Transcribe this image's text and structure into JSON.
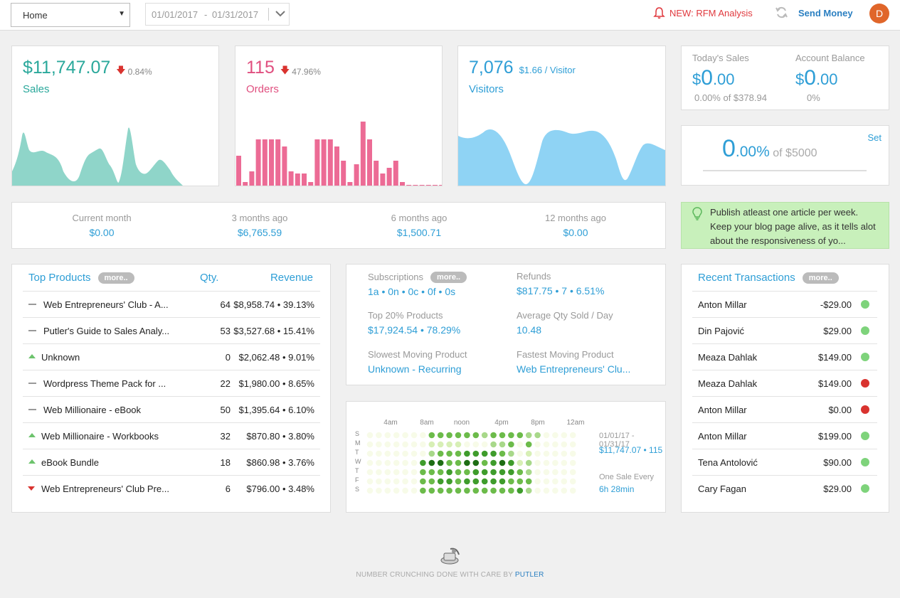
{
  "topbar": {
    "view_select": "Home",
    "date_from": "01/01/2017",
    "date_sep": "-",
    "date_to": "01/31/2017",
    "rfm_link": "NEW: RFM Analysis",
    "send_money": "Send Money",
    "avatar_initial": "D"
  },
  "kpis": {
    "sales": {
      "value": "$11,747.07",
      "delta": "0.84%",
      "label": "Sales",
      "color": "#2aa89b"
    },
    "orders": {
      "value": "115",
      "delta": "47.96%",
      "label": "Orders",
      "color": "#e04f7f"
    },
    "visitors": {
      "value": "7,076",
      "per_visitor": "$1.66 / Visitor",
      "label": "Visitors",
      "color": "#2e9ed6"
    }
  },
  "today": {
    "sales_label": "Today's Sales",
    "sales_dollar": "$",
    "sales_int": "0",
    "sales_dec": ".00",
    "sales_sub": "0.00% of $378.94",
    "balance_label": "Account Balance",
    "balance_dollar": "$",
    "balance_int": "0",
    "balance_dec": ".00",
    "balance_sub": "0%"
  },
  "goal": {
    "set": "Set",
    "int": "0",
    "dec": ".00%",
    "of": "of $5000"
  },
  "history": [
    {
      "label": "Current month",
      "value": "$0.00"
    },
    {
      "label": "3 months ago",
      "value": "$6,765.59"
    },
    {
      "label": "6 months ago",
      "value": "$1,500.71"
    },
    {
      "label": "12 months ago",
      "value": "$0.00"
    }
  ],
  "tip": {
    "text": "Publish atleast one article per week. Keep your blog page alive, as it tells alot about the responsiveness of yo..."
  },
  "top_products": {
    "title": "Top Products",
    "more": "more..",
    "col_qty": "Qty.",
    "col_revenue": "Revenue",
    "rows": [
      {
        "trend": "flat",
        "name": "Web Entrepreneurs' Club - A...",
        "qty": "64",
        "revenue": "$8,958.74 • 39.13%"
      },
      {
        "trend": "flat",
        "name": "Putler's Guide to Sales Analy...",
        "qty": "53",
        "revenue": "$3,527.68 • 15.41%"
      },
      {
        "trend": "up",
        "name": "Unknown",
        "qty": "0",
        "revenue": "$2,062.48 • 9.01%"
      },
      {
        "trend": "flat",
        "name": "Wordpress Theme Pack for ...",
        "qty": "22",
        "revenue": "$1,980.00 • 8.65%"
      },
      {
        "trend": "flat",
        "name": "Web Millionaire - eBook",
        "qty": "50",
        "revenue": "$1,395.64 • 6.10%"
      },
      {
        "trend": "up",
        "name": "Web Millionaire - Workbooks",
        "qty": "32",
        "revenue": "$870.80 • 3.80%"
      },
      {
        "trend": "up",
        "name": "eBook Bundle",
        "qty": "18",
        "revenue": "$860.98 • 3.76%"
      },
      {
        "trend": "down",
        "name": "Web Entrepreneurs' Club Pre...",
        "qty": "6",
        "revenue": "$796.00 • 3.48%"
      }
    ]
  },
  "stats": {
    "subs_label": "Subscriptions",
    "more": "more..",
    "subs_value": "1a • 0n • 0c • 0f • 0s",
    "refunds_label": "Refunds",
    "refunds_value": "$817.75 • 7 • 6.51%",
    "top20_label": "Top 20% Products",
    "top20_value": "$17,924.54 • 78.29%",
    "avgqty_label": "Average Qty Sold / Day",
    "avgqty_value": "10.48",
    "slowest_label": "Slowest Moving Product",
    "slowest_value": "Unknown - Recurring",
    "fastest_label": "Fastest Moving Product",
    "fastest_value": "Web Entrepreneurs' Clu..."
  },
  "heatmap": {
    "hours": [
      "4am",
      "8am",
      "noon",
      "4pm",
      "8pm",
      "12am"
    ],
    "days": [
      "S",
      "M",
      "T",
      "W",
      "T",
      "F",
      "S"
    ],
    "range": "01/01/17 - 01/31/17",
    "summary": "$11,747.07 • 115",
    "every_label": "One Sale Every",
    "every_value": "6h 28min",
    "grid": [
      "000000033333323333220000",
      "000000011110002230300000",
      "000000023334444320100000",
      "000000455335534541200000",
      "000000333433444443200000",
      "000000334434444433300000",
      "000000333333333334200000"
    ]
  },
  "transactions": {
    "title": "Recent Transactions",
    "more": "more..",
    "rows": [
      {
        "name": "Anton Millar",
        "amount": "-$29.00",
        "status": "green"
      },
      {
        "name": "Din Pajović",
        "amount": "$29.00",
        "status": "green"
      },
      {
        "name": "Meaza Dahlak",
        "amount": "$149.00",
        "status": "green"
      },
      {
        "name": "Meaza Dahlak",
        "amount": "$149.00",
        "status": "red"
      },
      {
        "name": "Anton Millar",
        "amount": "$0.00",
        "status": "red"
      },
      {
        "name": "Anton Millar",
        "amount": "$199.00",
        "status": "green"
      },
      {
        "name": "Tena Antolović",
        "amount": "$90.00",
        "status": "green"
      },
      {
        "name": "Cary Fagan",
        "amount": "$29.00",
        "status": "green"
      }
    ]
  },
  "footer": {
    "text": "NUMBER CRUNCHING DONE WITH CARE BY",
    "brand": "PUTLER"
  }
}
